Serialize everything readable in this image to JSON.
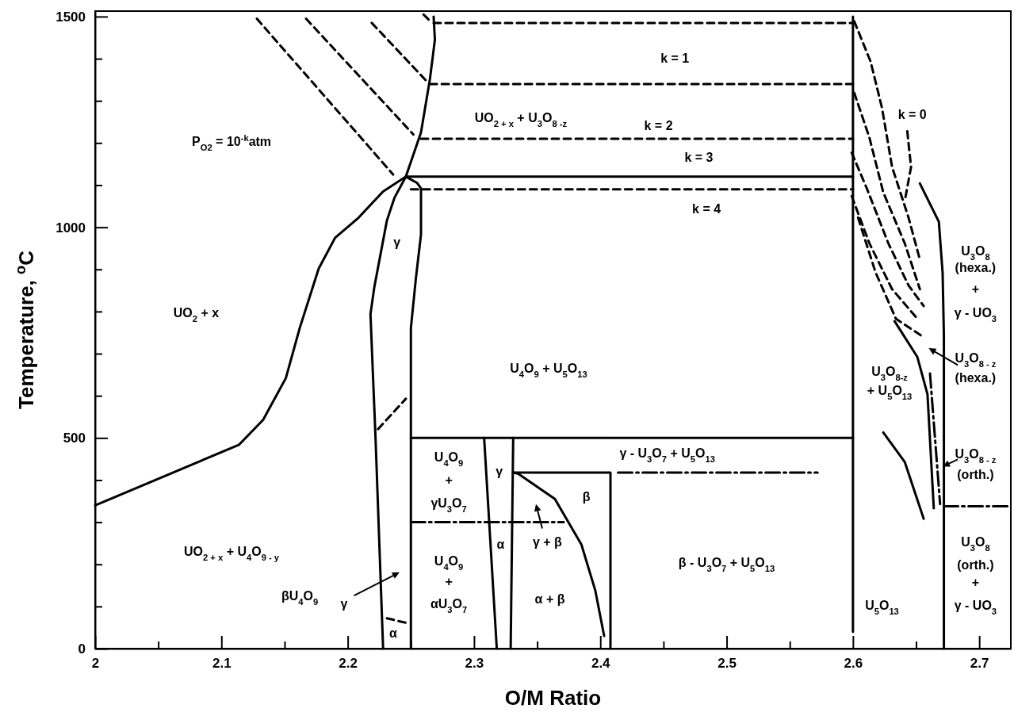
{
  "chart_data": {
    "type": "line",
    "xlabel": "O/M Ratio",
    "ylabel": "Temperature, $^{o}$C",
    "xlim": [
      2.0,
      2.725
    ],
    "ylim": [
      0,
      1513
    ],
    "xticks": [
      2.0,
      {
        "value": 2.05,
        "label": null
      },
      2.1,
      {
        "value": 2.15,
        "label": null
      },
      2.2,
      {
        "value": 2.25,
        "label": null
      },
      2.3,
      {
        "value": 2.35,
        "label": null
      },
      2.4,
      {
        "value": 2.45,
        "label": null
      },
      2.5,
      {
        "value": 2.55,
        "label": null
      },
      2.6,
      {
        "value": 2.65,
        "label": null
      },
      2.7
    ],
    "yticks": [
      0,
      {
        "value": 100,
        "label": null
      },
      {
        "value": 200,
        "label": null
      },
      {
        "value": 300,
        "label": null
      },
      {
        "value": 400,
        "label": null
      },
      500,
      {
        "value": 600,
        "label": null
      },
      {
        "value": 700,
        "label": null
      },
      {
        "value": 800,
        "label": null
      },
      {
        "value": 900,
        "label": null
      },
      1000,
      {
        "value": 1100,
        "label": null
      },
      {
        "value": 1200,
        "label": null
      },
      {
        "value": 1300,
        "label": null
      },
      {
        "value": 1400,
        "label": null
      },
      1500
    ],
    "series": [
      {
        "type": "line",
        "color": "#000000",
        "line_style": "solid",
        "x": [
          2.0,
          2.114,
          2.133,
          2.151,
          2.162,
          2.177,
          2.19,
          2.208,
          2.228,
          2.246,
          2.258,
          2.265,
          2.269,
          2.268
        ],
        "values": [
          340,
          484,
          543,
          642,
          761,
          902,
          975,
          1021,
          1085,
          1120,
          1225,
          1350,
          1445,
          1500
        ]
      },
      {
        "type": "line",
        "color": "#000000",
        "line_style": "solid",
        "x": [
          2.228,
          2.222,
          2.218,
          2.221,
          2.231,
          2.237,
          2.246,
          2.255,
          2.258,
          2.258,
          2.254,
          2.25,
          2.25
        ],
        "values": [
          0,
          500,
          794,
          857,
          1016,
          1070,
          1120,
          1105,
          1092,
          983,
          880,
          761,
          0
        ]
      },
      {
        "type": "line",
        "color": "#000000",
        "line_style": "solid",
        "x": [
          2.246,
          2.6
        ],
        "values": [
          1120,
          1120
        ]
      },
      {
        "type": "line",
        "color": "#000000",
        "line_style": "solid",
        "x": [
          2.6,
          2.6
        ],
        "values": [
          1500,
          40
        ]
      },
      {
        "type": "line",
        "color": "#000000",
        "line_style": "solid",
        "x": [
          2.25,
          2.6
        ],
        "values": [
          500,
          500
        ]
      },
      {
        "type": "line",
        "color": "#000000",
        "line_style": "dashed",
        "x": [
          2.268,
          2.6
        ],
        "values": [
          1485,
          1485
        ]
      },
      {
        "type": "line",
        "color": "#000000",
        "line_style": "dashed",
        "x": [
          2.265,
          2.6
        ],
        "values": [
          1340,
          1340
        ]
      },
      {
        "type": "line",
        "color": "#000000",
        "line_style": "dashed",
        "x": [
          2.258,
          2.6
        ],
        "values": [
          1210,
          1210
        ]
      },
      {
        "type": "line",
        "color": "#000000",
        "line_style": "dashed",
        "x": [
          2.25,
          2.6
        ],
        "values": [
          1090,
          1090
        ]
      },
      {
        "type": "line",
        "color": "#000000",
        "line_style": "dashed",
        "x": [
          2.128,
          2.236
        ],
        "values": [
          1495,
          1125
        ]
      },
      {
        "type": "line",
        "color": "#000000",
        "line_style": "dashed",
        "x": [
          2.167,
          2.252
        ],
        "values": [
          1495,
          1220
        ]
      },
      {
        "type": "line",
        "color": "#000000",
        "line_style": "dashed",
        "x": [
          2.219,
          2.263
        ],
        "values": [
          1485,
          1345
        ]
      },
      {
        "type": "line",
        "color": "#000000",
        "line_style": "dashed",
        "x": [
          2.26,
          2.265
        ],
        "values": [
          1505,
          1490
        ]
      },
      {
        "type": "line",
        "color": "#000000",
        "line_style": "dashed",
        "x": [
          2.224,
          2.246
        ],
        "values": [
          521,
          593
        ]
      },
      {
        "type": "line",
        "color": "#000000",
        "line_style": "dashed",
        "x": [
          2.231,
          2.248
        ],
        "values": [
          72,
          60
        ]
      },
      {
        "type": "line",
        "color": "#000000",
        "line_style": "solid",
        "x": [
          2.308,
          2.318
        ],
        "values": [
          500,
          0
        ]
      },
      {
        "type": "line",
        "color": "#000000",
        "line_style": "solid",
        "x": [
          2.331,
          2.329
        ],
        "values": [
          500,
          0
        ]
      },
      {
        "type": "line",
        "color": "#000000",
        "line_style": "dotted",
        "x": [
          2.25,
          2.371
        ],
        "values": [
          300,
          300
        ]
      },
      {
        "type": "line",
        "color": "#000000",
        "line_style": "solid",
        "x": [
          2.331,
          2.408,
          2.408
        ],
        "values": [
          418,
          418,
          0
        ]
      },
      {
        "type": "line",
        "color": "#000000",
        "line_style": "solid",
        "x": [
          2.331,
          2.335,
          2.364,
          2.385,
          2.396,
          2.403
        ],
        "values": [
          418,
          415,
          355,
          247,
          138,
          30
        ]
      },
      {
        "type": "line",
        "color": "#000000",
        "line_style": "dotted",
        "x": [
          2.414,
          2.572
        ],
        "values": [
          418,
          418
        ]
      },
      {
        "type": "line",
        "color": "#000000",
        "line_style": "solid",
        "x": [
          2.653,
          2.668,
          2.671,
          2.672,
          2.672
        ],
        "values": [
          1104,
          1013,
          892,
          743,
          0
        ]
      },
      {
        "type": "line",
        "color": "#000000",
        "line_style": "solid",
        "x": [
          2.633,
          2.651,
          2.659,
          2.664
        ],
        "values": [
          777,
          692,
          604,
          333
        ]
      },
      {
        "type": "line",
        "color": "#000000",
        "line_style": "solid",
        "x": [
          2.624,
          2.641,
          2.656
        ],
        "values": [
          513,
          443,
          308
        ]
      },
      {
        "type": "line",
        "color": "#000000",
        "line_style": "dotted",
        "x": [
          2.661,
          2.669
        ],
        "values": [
          653,
          343
        ]
      },
      {
        "type": "line",
        "color": "#000000",
        "line_style": "dotted",
        "x": [
          2.672,
          2.725
        ],
        "values": [
          338,
          338
        ]
      },
      {
        "type": "line",
        "color": "#000000",
        "line_style": "dashed",
        "x": [
          2.601,
          2.614,
          2.623,
          2.631,
          2.644,
          2.653
        ],
        "values": [
          1489,
          1393,
          1283,
          1143,
          1023,
          923
        ]
      },
      {
        "type": "line",
        "color": "#000000",
        "line_style": "dashed",
        "x": [
          2.601,
          2.613,
          2.624,
          2.641,
          2.653
        ],
        "values": [
          1319,
          1213,
          1083,
          962,
          853
        ]
      },
      {
        "type": "line",
        "color": "#000000",
        "line_style": "dashed",
        "x": [
          2.599,
          2.611,
          2.628,
          2.644,
          2.656
        ],
        "values": [
          1177,
          1092,
          962,
          862,
          813
        ]
      },
      {
        "type": "line",
        "color": "#000000",
        "line_style": "dashed",
        "x": [
          2.599,
          2.613,
          2.631,
          2.651
        ],
        "values": [
          1074,
          962,
          853,
          783
        ]
      },
      {
        "type": "line",
        "color": "#000000",
        "line_style": "dashed",
        "x": [
          2.604,
          2.618,
          2.634,
          2.654
        ],
        "values": [
          1023,
          892,
          783,
          743
        ]
      },
      {
        "type": "line",
        "color": "#000000",
        "line_style": "dashed",
        "x": [
          2.643,
          2.646,
          2.641
        ],
        "values": [
          1228,
          1143,
          1062
        ]
      }
    ],
    "annotations": [
      "P$_{O2}$ = 10$^{-k}$atm",
      "k = 1",
      "k = 2",
      "UO$_{2 + x}$ + U$_{3}$O$_{8 -z}$",
      "k = 3",
      "k = 4",
      "k = 0",
      "γ",
      "UO$_{2}$ + x",
      "U$_{4}$O$_{9}$ + U$_{5}$O$_{13}$",
      "γ - U$_{3}$O$_{7}$ + U$_{5}$O$_{13}$",
      "U$_{4}$O$_{9}$",
      "+",
      "γU$_{3}$O$_{7}$",
      "γ",
      "β",
      "γ + β",
      "α",
      "UO$_{2 + x}$ + U$_{4}$O$_{9 - y}$",
      "U$_{4}$O$_{9}$",
      "+",
      "αU$_{3}$O$_{7}$",
      "α + β",
      "β - U$_{3}$O$_{7}$ + U$_{5}$O$_{13}$",
      "βU$_{4}$O$_{9}$",
      "γ",
      "α",
      "U$_{5}$O$_{13}$",
      "U$_{3}$O$_{8}$",
      "(hexa.)",
      "+",
      "γ - UO$_{3}$",
      "U$_{3}$O$_{8 - z}$",
      "(hexa.)",
      "U$_{3}$O$_{8-z}$",
      "+ U$_{5}$O$_{13}$",
      "U$_{3}$O$_{8 - z}$",
      "(orth.)",
      "U$_{3}$O$_{8}$",
      "(orth.)",
      "+",
      "γ - UO$_{3}$"
    ]
  }
}
